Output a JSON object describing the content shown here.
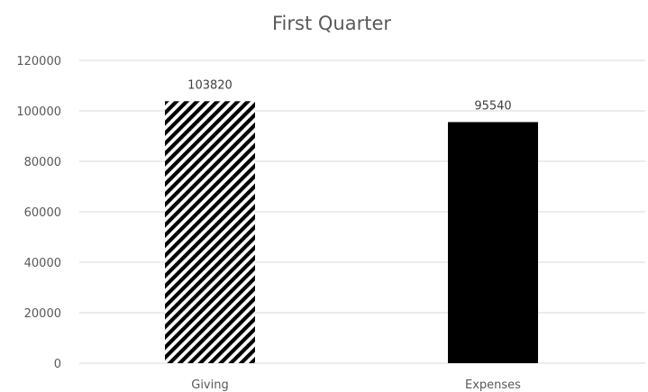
{
  "chart_data": {
    "type": "bar",
    "title": "First Quarter",
    "categories": [
      "Giving",
      "Expenses"
    ],
    "values": [
      103820,
      95540
    ],
    "data_labels": [
      "103820",
      "95540"
    ],
    "bar_fills": [
      "diagonal-stripes",
      "solid"
    ],
    "bar_color": "#000000",
    "ylim": [
      0,
      120000
    ],
    "y_ticks": [
      0,
      20000,
      40000,
      60000,
      80000,
      100000,
      120000
    ],
    "y_tick_labels": [
      "0",
      "20000",
      "40000",
      "60000",
      "80000",
      "100000",
      "120000"
    ],
    "grid": true,
    "legend": "none",
    "xlabel": "",
    "ylabel": ""
  }
}
